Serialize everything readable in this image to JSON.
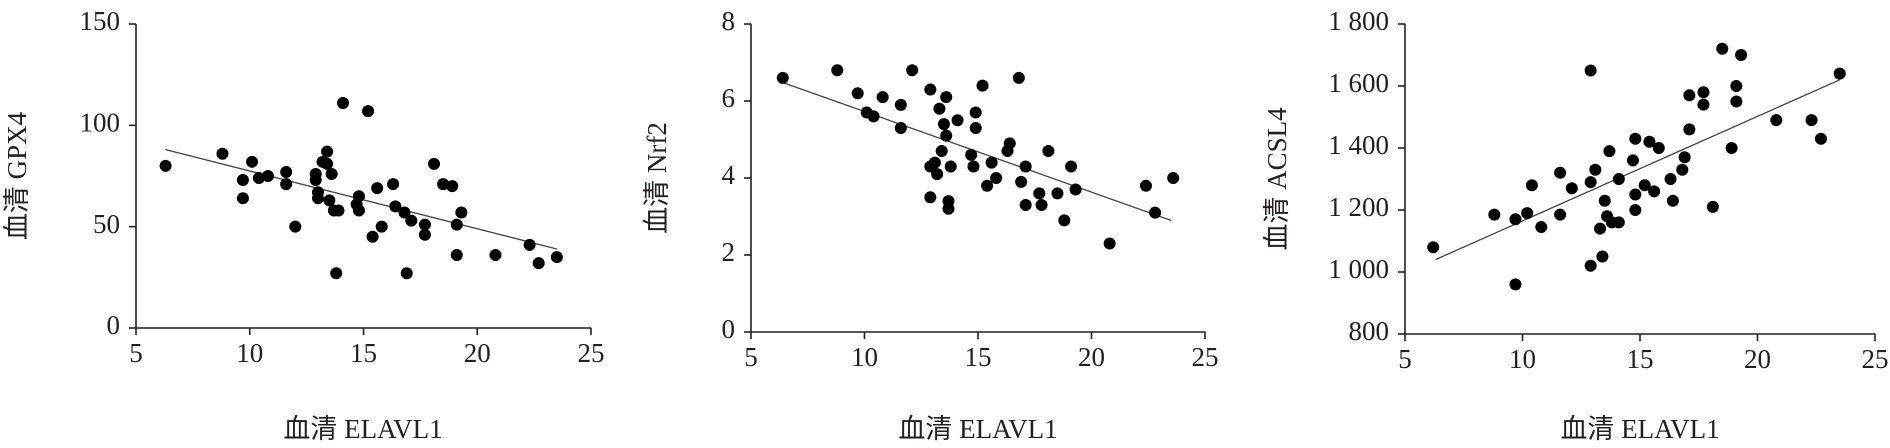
{
  "chart_data": [
    {
      "type": "scatter",
      "x_label": "血清 ELAVL1",
      "y_label": "血清 GPX4",
      "color": "#000000",
      "xlim": [
        5,
        25
      ],
      "xticks": [
        5,
        10,
        15,
        20,
        25
      ],
      "ylim": [
        0,
        150
      ],
      "yticks": [
        0,
        50,
        100,
        150
      ],
      "x": [
        6.3,
        8.8,
        9.7,
        9.7,
        10.1,
        10.4,
        10.8,
        11.6,
        11.6,
        12.0,
        12.9,
        12.9,
        13.0,
        13.0,
        13.2,
        13.4,
        13.4,
        13.5,
        13.6,
        13.7,
        13.8,
        13.9,
        14.1,
        14.7,
        14.8,
        14.8,
        15.2,
        15.4,
        15.6,
        15.8,
        16.3,
        16.4,
        16.8,
        16.9,
        17.1,
        17.7,
        17.7,
        18.1,
        18.5,
        18.9,
        19.1,
        19.1,
        19.3,
        20.8,
        22.3,
        22.7,
        23.5
      ],
      "y": [
        80,
        86,
        73,
        64,
        82,
        74,
        75,
        71,
        77,
        50,
        76,
        73,
        64,
        67,
        82,
        87,
        81,
        63,
        76,
        58,
        27,
        58,
        111,
        61,
        65,
        58,
        107,
        45,
        69,
        50,
        71,
        60,
        57,
        27,
        53,
        51,
        46,
        81,
        71,
        70,
        51,
        36,
        57,
        36,
        41,
        32,
        35
      ],
      "trendline": {
        "x": [
          6.3,
          23.5
        ],
        "y": [
          88,
          39
        ]
      }
    },
    {
      "type": "scatter",
      "x_label": "血清 ELAVL1",
      "y_label": "血清 Nrf2",
      "color": "#000000",
      "xlim": [
        5,
        25
      ],
      "xticks": [
        5,
        10,
        15,
        20,
        25
      ],
      "ylim": [
        0,
        8
      ],
      "yticks": [
        0,
        2,
        4,
        6,
        8
      ],
      "x": [
        6.4,
        8.8,
        9.7,
        10.1,
        10.4,
        10.8,
        11.6,
        11.6,
        12.1,
        12.9,
        12.9,
        12.9,
        13.1,
        13.2,
        13.3,
        13.4,
        13.5,
        13.6,
        13.6,
        13.7,
        13.7,
        13.8,
        14.1,
        14.7,
        14.8,
        14.9,
        14.9,
        15.2,
        15.4,
        15.6,
        15.8,
        16.3,
        16.4,
        16.8,
        16.9,
        17.1,
        17.1,
        17.7,
        17.8,
        18.1,
        18.5,
        18.8,
        19.1,
        19.3,
        20.8,
        22.4,
        22.8,
        23.6
      ],
      "y": [
        6.6,
        6.8,
        6.2,
        5.7,
        5.6,
        6.1,
        5.9,
        5.3,
        6.8,
        6.3,
        4.3,
        3.5,
        4.4,
        4.1,
        5.8,
        4.7,
        5.4,
        6.1,
        5.1,
        3.4,
        3.2,
        4.3,
        5.5,
        4.6,
        4.3,
        5.7,
        5.3,
        6.4,
        3.8,
        4.4,
        4.0,
        4.7,
        4.9,
        6.6,
        3.9,
        3.3,
        4.3,
        3.6,
        3.3,
        4.7,
        3.6,
        2.9,
        4.3,
        3.7,
        2.3,
        3.8,
        3.1,
        4.0
      ],
      "trendline": {
        "x": [
          6.3,
          23.5
        ],
        "y": [
          6.5,
          2.9
        ]
      }
    },
    {
      "type": "scatter",
      "x_label": "血清 ELAVL1",
      "y_label": "血清 ACSL4",
      "color": "#000000",
      "xlim": [
        5,
        25
      ],
      "xticks": [
        5,
        10,
        15,
        20,
        25
      ],
      "ylim": [
        800,
        1800
      ],
      "yticks": [
        800,
        {
          "value": 1000,
          "label": "1 000"
        },
        {
          "value": 1200,
          "label": "1 200"
        },
        {
          "value": 1400,
          "label": "1 400"
        },
        {
          "value": 1600,
          "label": "1 600"
        },
        {
          "value": 1800,
          "label": "1 800"
        }
      ],
      "x": [
        6.2,
        8.8,
        9.7,
        9.7,
        10.2,
        10.4,
        10.8,
        11.6,
        11.6,
        12.1,
        12.9,
        12.9,
        12.9,
        13.1,
        13.3,
        13.4,
        13.5,
        13.6,
        13.7,
        13.8,
        14.1,
        14.1,
        14.7,
        14.8,
        14.8,
        14.8,
        15.2,
        15.4,
        15.6,
        15.8,
        16.3,
        16.4,
        16.8,
        16.9,
        17.1,
        17.1,
        17.7,
        17.7,
        18.1,
        18.5,
        18.9,
        19.1,
        19.1,
        19.3,
        20.8,
        22.3,
        22.7,
        23.5
      ],
      "y": [
        1080,
        1185,
        960,
        1170,
        1190,
        1280,
        1145,
        1185,
        1320,
        1270,
        1650,
        1020,
        1290,
        1330,
        1140,
        1050,
        1230,
        1180,
        1390,
        1160,
        1300,
        1160,
        1360,
        1430,
        1250,
        1200,
        1280,
        1420,
        1260,
        1400,
        1300,
        1230,
        1330,
        1370,
        1460,
        1570,
        1580,
        1540,
        1210,
        1720,
        1400,
        1600,
        1550,
        1700,
        1490,
        1490,
        1430,
        1640
      ],
      "trendline": {
        "x": [
          6.3,
          23.5
        ],
        "y": [
          1040,
          1620
        ]
      }
    }
  ]
}
